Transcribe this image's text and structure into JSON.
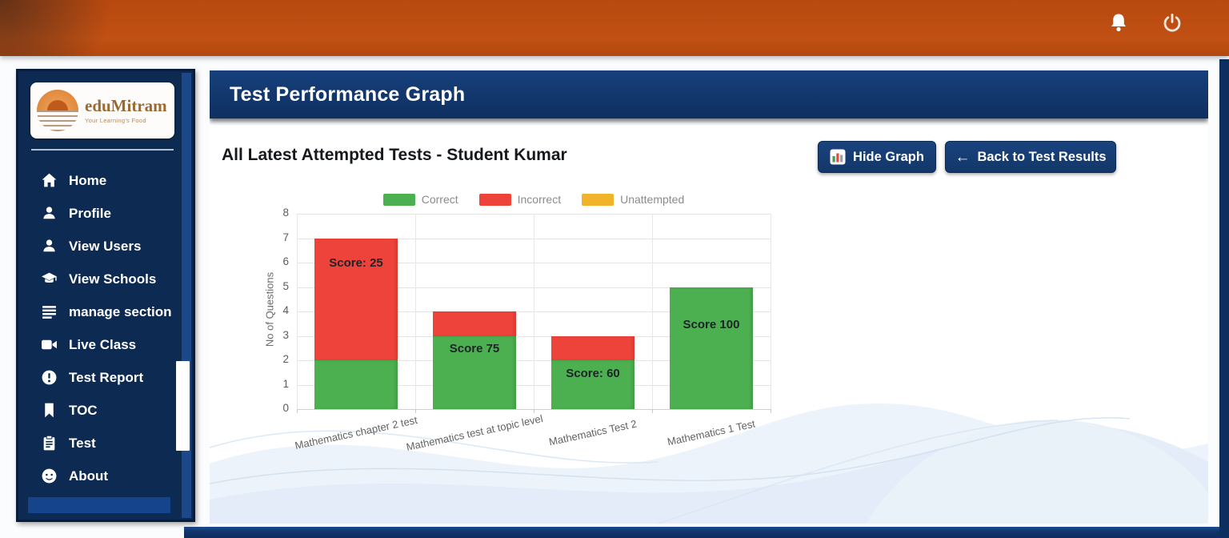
{
  "topbar": {
    "icons": [
      "notification-bell-icon",
      "power-icon"
    ]
  },
  "sidebar": {
    "logo": {
      "brand": "eduMitram",
      "tagline": "Your Learning's Food"
    },
    "items": [
      {
        "label": "Home",
        "icon": "home-icon"
      },
      {
        "label": "Profile",
        "icon": "person-icon"
      },
      {
        "label": "View Users",
        "icon": "person-icon"
      },
      {
        "label": "View Schools",
        "icon": "graduation-cap-icon"
      },
      {
        "label": "manage section",
        "icon": "list-icon"
      },
      {
        "label": "Live Class",
        "icon": "video-camera-icon"
      },
      {
        "label": "Test Report",
        "icon": "alert-circle-icon"
      },
      {
        "label": "TOC",
        "icon": "bookmark-icon"
      },
      {
        "label": "Test",
        "icon": "clipboard-icon"
      },
      {
        "label": "About",
        "icon": "smiley-icon"
      }
    ]
  },
  "header": {
    "title": "Test Performance Graph"
  },
  "main": {
    "subtitle": "All Latest Attempted Tests - Student Kumar",
    "buttons": {
      "hide_graph": "Hide Graph",
      "back_arrow": "←",
      "back_label": "Back to Test Results"
    }
  },
  "chart_data": {
    "type": "bar",
    "stacked": true,
    "title": "",
    "categories": [
      "Mathematics chapter 2 test",
      "Mathematics test at topic level",
      "Mathematics Test 2",
      "Mathematics 1 Test"
    ],
    "series": [
      {
        "name": "Correct",
        "color": "#4caf50",
        "values": [
          2,
          3,
          2,
          5
        ]
      },
      {
        "name": "Incorrect",
        "color": "#ee433a",
        "values": [
          5,
          1,
          1,
          0
        ]
      },
      {
        "name": "Unattempted",
        "color": "#f2b32c",
        "values": [
          0,
          0,
          0,
          0
        ]
      }
    ],
    "totals": [
      7,
      4,
      3,
      5
    ],
    "bar_labels": [
      "Score: 25",
      "Score 75",
      "Score: 60",
      "Score 100"
    ],
    "xlabel": "",
    "ylabel": "No of Questions",
    "ylim": [
      0,
      8
    ],
    "yticks": [
      0,
      1,
      2,
      3,
      4,
      5,
      6,
      7,
      8
    ],
    "grid": true,
    "legend_position": "top"
  },
  "colors": {
    "topbar_orange": "#bc4a10",
    "sidebar_navy": "#0d2a52",
    "banner_navy": "#12366b",
    "correct_green": "#4caf50",
    "incorrect_red": "#ee433a",
    "unattempted_yellow": "#f2b32c"
  }
}
